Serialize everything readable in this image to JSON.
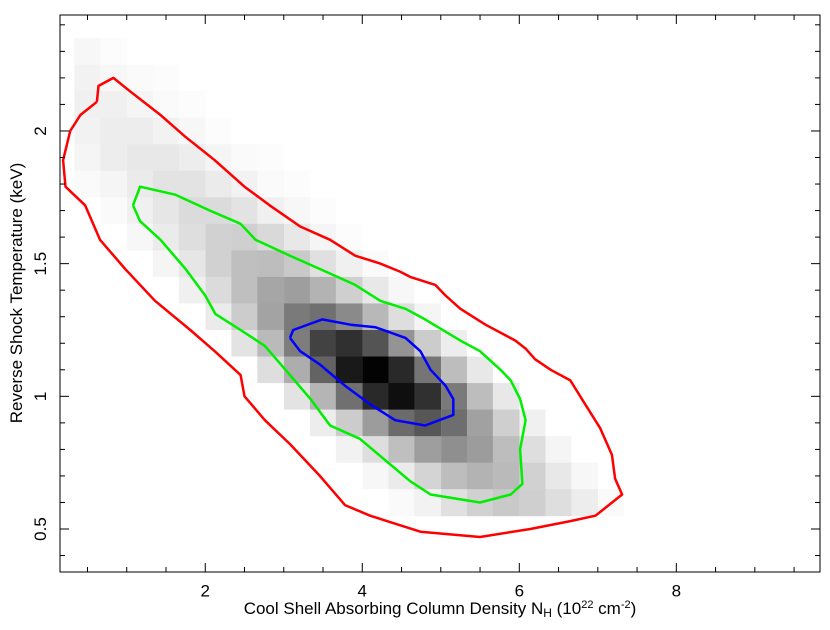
{
  "chart_data": {
    "type": "heatmap-contour",
    "xlabel": [
      {
        "text": "Cool Shell Absorbing Column Density N",
        "style": "normal"
      },
      {
        "text": "H",
        "style": "sub"
      },
      {
        "text": " (10",
        "style": "normal"
      },
      {
        "text": "22",
        "style": "sup"
      },
      {
        "text": " cm",
        "style": "normal"
      },
      {
        "text": "-2",
        "style": "sup"
      },
      {
        "text": ")",
        "style": "normal"
      }
    ],
    "ylabel": "Reverse Shock Temperature (keV)",
    "xlim": [
      0.15,
      9.83
    ],
    "ylim": [
      0.338,
      2.437
    ],
    "xticks": [
      2,
      4,
      6,
      8
    ],
    "yticks": [
      0.5,
      1,
      1.5,
      2
    ],
    "xminorticks": [
      0.5,
      1,
      1.5,
      2.5,
      3,
      3.5,
      4.5,
      5,
      5.5,
      6.5,
      7,
      7.5,
      8.5,
      9,
      9.5
    ],
    "yminorticks": [
      0.4,
      0.6,
      0.7,
      0.8,
      0.9,
      1.1,
      1.2,
      1.3,
      1.4,
      1.6,
      1.7,
      1.8,
      1.9,
      2.1,
      2.2,
      2.3,
      2.4
    ],
    "x": [
      0.5,
      0.83,
      1.17,
      1.5,
      1.83,
      2.17,
      2.5,
      2.83,
      3.17,
      3.5,
      3.83,
      4.17,
      4.5,
      4.83,
      5.17,
      5.5,
      5.83,
      6.17,
      6.5,
      6.83,
      7.17,
      7.5
    ],
    "y": [
      2.3,
      2.2,
      2.1,
      2.0,
      1.9,
      1.8,
      1.7,
      1.6,
      1.5,
      1.4,
      1.3,
      1.2,
      1.1,
      1.0,
      0.9,
      0.8,
      0.7,
      0.6
    ],
    "z": [
      [
        3,
        1,
        0,
        0,
        0,
        0,
        0,
        0,
        0,
        0,
        0,
        0,
        0,
        0,
        0,
        0,
        0,
        0,
        0,
        0,
        0,
        0
      ],
      [
        5,
        3,
        2,
        1,
        0,
        0,
        0,
        0,
        0,
        0,
        0,
        0,
        0,
        0,
        0,
        0,
        0,
        0,
        0,
        0,
        0,
        0
      ],
      [
        6,
        6,
        4,
        2,
        1,
        0,
        0,
        0,
        0,
        0,
        0,
        0,
        0,
        0,
        0,
        0,
        0,
        0,
        0,
        0,
        0,
        0
      ],
      [
        5,
        7,
        7,
        5,
        3,
        1,
        0,
        0,
        0,
        0,
        0,
        0,
        0,
        0,
        0,
        0,
        0,
        0,
        0,
        0,
        0,
        0
      ],
      [
        4,
        7,
        9,
        9,
        7,
        4,
        2,
        1,
        0,
        0,
        0,
        0,
        0,
        0,
        0,
        0,
        0,
        0,
        0,
        0,
        0,
        0
      ],
      [
        2,
        4,
        8,
        11,
        11,
        8,
        5,
        2,
        1,
        0,
        0,
        0,
        0,
        0,
        0,
        0,
        0,
        0,
        0,
        0,
        0,
        0
      ],
      [
        0,
        2,
        6,
        10,
        14,
        14,
        11,
        6,
        3,
        1,
        0,
        0,
        0,
        0,
        0,
        0,
        0,
        0,
        0,
        0,
        0,
        0
      ],
      [
        0,
        0,
        3,
        8,
        13,
        18,
        19,
        15,
        9,
        4,
        1,
        0,
        0,
        0,
        0,
        0,
        0,
        0,
        0,
        0,
        0,
        0
      ],
      [
        0,
        0,
        0,
        4,
        10,
        18,
        25,
        26,
        21,
        12,
        6,
        2,
        0,
        0,
        0,
        0,
        0,
        0,
        0,
        0,
        0,
        0
      ],
      [
        0,
        0,
        0,
        0,
        6,
        14,
        25,
        35,
        38,
        30,
        19,
        9,
        3,
        0,
        0,
        0,
        0,
        0,
        0,
        0,
        0,
        0
      ],
      [
        0,
        0,
        0,
        0,
        0,
        8,
        20,
        36,
        52,
        56,
        46,
        28,
        13,
        4,
        0,
        0,
        0,
        0,
        0,
        0,
        0,
        0
      ],
      [
        0,
        0,
        0,
        0,
        0,
        0,
        11,
        27,
        51,
        74,
        81,
        67,
        42,
        20,
        7,
        0,
        0,
        0,
        0,
        0,
        0,
        0
      ],
      [
        0,
        0,
        0,
        0,
        0,
        0,
        0,
        13,
        32,
        61,
        90,
        99,
        84,
        54,
        26,
        9,
        0,
        0,
        0,
        0,
        0,
        0
      ],
      [
        0,
        0,
        0,
        0,
        0,
        0,
        0,
        0,
        11,
        29,
        56,
        84,
        94,
        81,
        52,
        26,
        9,
        0,
        0,
        0,
        0,
        0
      ],
      [
        0,
        0,
        0,
        0,
        0,
        0,
        0,
        0,
        0,
        7,
        20,
        39,
        58,
        66,
        57,
        37,
        19,
        6,
        0,
        0,
        0,
        0
      ],
      [
        0,
        0,
        0,
        0,
        0,
        0,
        0,
        0,
        0,
        0,
        5,
        13,
        25,
        38,
        44,
        39,
        26,
        13,
        4,
        0,
        0,
        0
      ],
      [
        0,
        0,
        0,
        0,
        0,
        0,
        0,
        0,
        0,
        0,
        0,
        3,
        8,
        17,
        26,
        30,
        27,
        18,
        9,
        3,
        0,
        0
      ],
      [
        0,
        0,
        0,
        0,
        0,
        0,
        0,
        0,
        0,
        0,
        0,
        0,
        2,
        5,
        12,
        18,
        21,
        19,
        13,
        7,
        2,
        0
      ]
    ],
    "zlim": [
      0,
      100
    ],
    "contours": [
      {
        "color": "#ff0000",
        "x": [
          0.62,
          0.64,
          0.83,
          1.04,
          1.43,
          1.74,
          2.12,
          2.5,
          2.82,
          3.21,
          3.59,
          3.91,
          4.23,
          4.48,
          4.61,
          4.93,
          5.06,
          5.25,
          5.57,
          5.95,
          6.08,
          6.2,
          6.4,
          6.65,
          6.84,
          7.03,
          7.18,
          7.22,
          7.31,
          6.97,
          6.65,
          6.14,
          5.5,
          4.74,
          4.1,
          3.78,
          3.46,
          3.08,
          2.76,
          2.5,
          2.45,
          2.12,
          1.81,
          1.36,
          0.98,
          0.66,
          0.47,
          0.22,
          0.19,
          0.28,
          0.41,
          0.62
        ],
        "y": [
          2.11,
          2.17,
          2.2,
          2.15,
          2.06,
          1.98,
          1.89,
          1.79,
          1.72,
          1.64,
          1.59,
          1.53,
          1.5,
          1.47,
          1.45,
          1.42,
          1.38,
          1.33,
          1.27,
          1.21,
          1.18,
          1.14,
          1.1,
          1.06,
          0.97,
          0.88,
          0.78,
          0.69,
          0.63,
          0.55,
          0.53,
          0.5,
          0.47,
          0.49,
          0.55,
          0.59,
          0.7,
          0.82,
          0.91,
          1.0,
          1.08,
          1.17,
          1.25,
          1.36,
          1.48,
          1.59,
          1.72,
          1.79,
          1.89,
          2.0,
          2.06,
          2.11
        ]
      },
      {
        "color": "#00ee00",
        "x": [
          1.08,
          1.17,
          1.62,
          2.06,
          2.45,
          2.64,
          3.08,
          3.46,
          3.91,
          4.23,
          4.55,
          4.8,
          5.25,
          5.5,
          5.76,
          5.89,
          6.01,
          6.08,
          6.01,
          6.04,
          5.89,
          5.5,
          4.87,
          4.61,
          4.29,
          3.97,
          3.59,
          3.34,
          3.08,
          2.76,
          2.45,
          2.13,
          2.0,
          1.75,
          1.43,
          1.17,
          1.08
        ],
        "y": [
          1.72,
          1.79,
          1.76,
          1.7,
          1.65,
          1.59,
          1.53,
          1.48,
          1.42,
          1.36,
          1.33,
          1.29,
          1.21,
          1.17,
          1.1,
          1.06,
          0.99,
          0.91,
          0.8,
          0.67,
          0.63,
          0.6,
          0.63,
          0.68,
          0.76,
          0.84,
          0.89,
          0.99,
          1.08,
          1.19,
          1.25,
          1.31,
          1.38,
          1.48,
          1.59,
          1.66,
          1.72
        ]
      },
      {
        "color": "#0000ff",
        "x": [
          3.08,
          3.12,
          3.49,
          3.85,
          4.17,
          4.55,
          4.74,
          4.87,
          5.06,
          5.16,
          5.16,
          4.8,
          4.42,
          4.1,
          3.78,
          3.46,
          3.21,
          3.08
        ],
        "y": [
          1.22,
          1.25,
          1.29,
          1.27,
          1.26,
          1.22,
          1.17,
          1.1,
          1.04,
          0.99,
          0.93,
          0.89,
          0.91,
          0.97,
          1.04,
          1.12,
          1.17,
          1.22
        ]
      }
    ]
  }
}
